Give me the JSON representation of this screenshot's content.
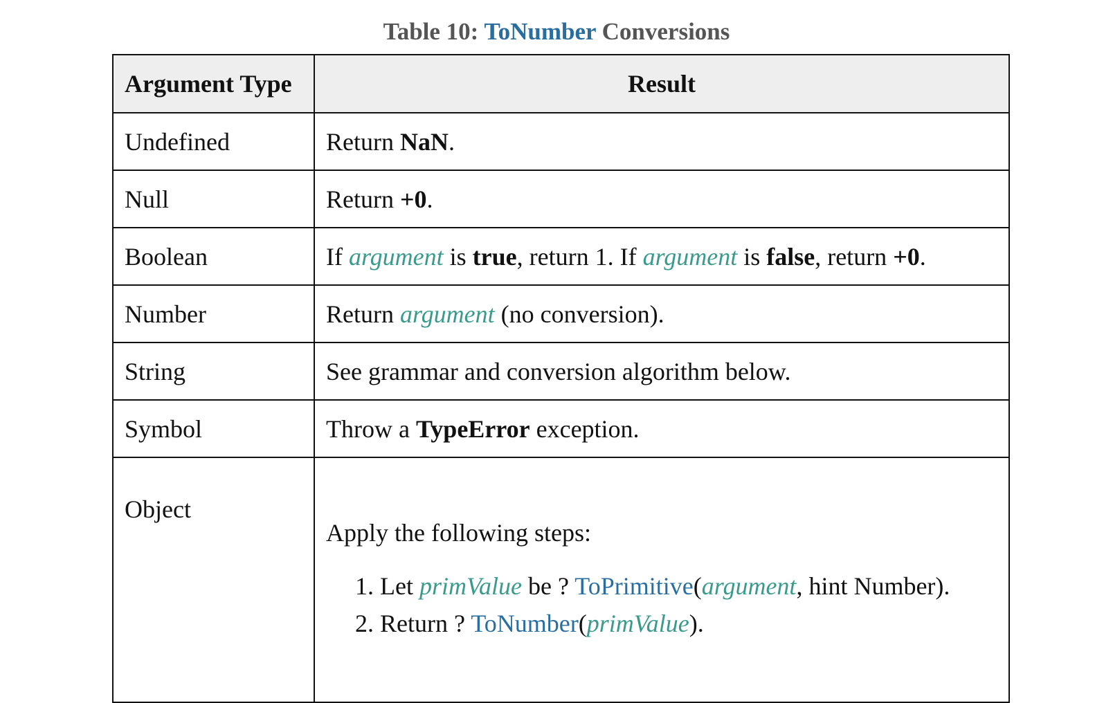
{
  "caption": {
    "prefix": "Table 10: ",
    "link": "ToNumber",
    "suffix": " Conversions"
  },
  "headers": {
    "argument_type": "Argument Type",
    "result": "Result"
  },
  "rows": [
    {
      "type": "Undefined",
      "result": {
        "t1": "Return ",
        "b1": "NaN",
        "t2": "."
      }
    },
    {
      "type": "Null",
      "result": {
        "t1": "Return ",
        "b1": "+0",
        "t2": "."
      }
    },
    {
      "type": "Boolean",
      "result": {
        "t1": "If ",
        "v1": "argument",
        "t2": " is ",
        "b1": "true",
        "t3": ", return 1. If ",
        "v2": "argument",
        "t4": " is ",
        "b2": "false",
        "t5": ", return ",
        "b3": "+0",
        "t6": "."
      }
    },
    {
      "type": "Number",
      "result": {
        "t1": "Return ",
        "v1": "argument",
        "t2": " (no conversion)."
      }
    },
    {
      "type": "String",
      "result": {
        "t1": "See grammar and conversion algorithm below."
      }
    },
    {
      "type": "Symbol",
      "result": {
        "t1": "Throw a ",
        "b1": "TypeError",
        "t2": " exception."
      }
    },
    {
      "type": "Object",
      "result": {
        "intro": "Apply the following steps:",
        "steps": [
          {
            "t1": "Let ",
            "v1": "primValue",
            "t2": " be ? ",
            "f1": "ToPrimitive",
            "t3": "(",
            "v2": "argument",
            "t4": ", hint Number)."
          },
          {
            "t1": "Return ? ",
            "f1": "ToNumber",
            "t2": "(",
            "v1": "primValue",
            "t3": ")."
          }
        ]
      }
    }
  ],
  "colors": {
    "variable": "#3a9a8c",
    "link": "#2a6ea0",
    "header_bg": "#eeeeee",
    "caption": "#555555"
  }
}
